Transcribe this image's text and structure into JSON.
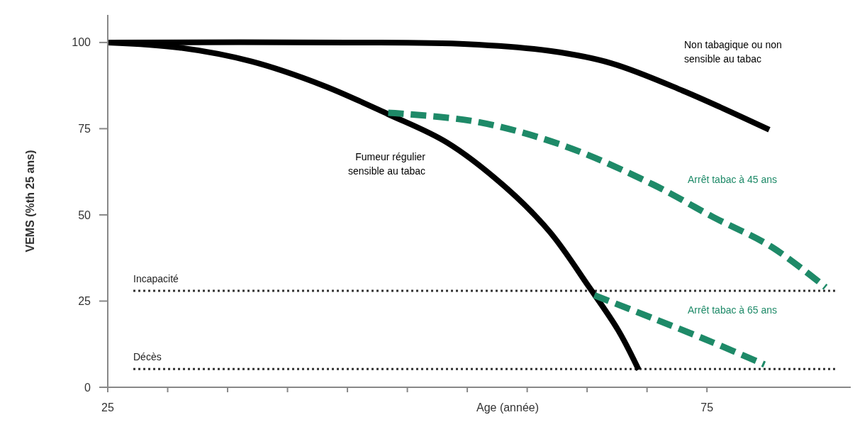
{
  "chart_data": {
    "type": "line",
    "xlabel": "Age (année)",
    "ylabel": "VEMS (%th 25 ans)",
    "xlim": [
      25,
      87
    ],
    "ylim": [
      0,
      108
    ],
    "xticks": [
      25,
      {
        "value": 30,
        "label": null
      },
      {
        "value": 35,
        "label": null
      },
      {
        "value": 40,
        "label": null
      },
      {
        "value": 45,
        "label": null
      },
      {
        "value": 50,
        "label": null
      },
      {
        "value": 55,
        "label": null
      },
      {
        "value": 60,
        "label": null
      },
      {
        "value": 65,
        "label": null
      },
      {
        "value": 70,
        "label": null
      },
      75
    ],
    "yticks": [
      0,
      25,
      50,
      75,
      100
    ],
    "grid": false,
    "marker": "none",
    "series": [
      {
        "name": "Non tabagique ou non sensible au tabac",
        "color": "#000000",
        "line_style": "solid",
        "x": [
          25,
          45,
          55,
          62,
          67,
          73,
          80.2
        ],
        "values": [
          100,
          100,
          99.5,
          97.5,
          94,
          86,
          74.7
        ]
      },
      {
        "name": "Fumeur régulier sensible au tabac",
        "color": "#000000",
        "line_style": "solid",
        "x": [
          25,
          31,
          37,
          43,
          48.4,
          53.3,
          58.2,
          61.9,
          65.1,
          67.6,
          69.3
        ],
        "values": [
          100,
          98.5,
          94.5,
          87.5,
          79.2,
          71,
          58,
          45,
          29.4,
          16.5,
          5.1
        ]
      },
      {
        "name": "Arrêt tabac à 45 ans",
        "color": "#1e8a68",
        "line_style": "dashed",
        "x": [
          48.4,
          55.8,
          63.1,
          70.5,
          75.5,
          80.4,
          84.9
        ],
        "values": [
          79.6,
          77,
          70,
          58.8,
          49.4,
          40.7,
          29
        ]
      },
      {
        "name": "Arrêt tabac à 65 ans",
        "color": "#1e8a68",
        "line_style": "dashed",
        "x": [
          65.6,
          70.5,
          75.5,
          79.8
        ],
        "values": [
          26.7,
          20,
          13,
          6.6
        ]
      }
    ],
    "ref_lines": [
      {
        "axis": "y",
        "value": 28,
        "label": "Incapacité",
        "color": "#333333",
        "line_style": "dotted"
      },
      {
        "axis": "y",
        "value": 5.3,
        "label": "Décès",
        "color": "#333333",
        "line_style": "dotted"
      }
    ]
  }
}
